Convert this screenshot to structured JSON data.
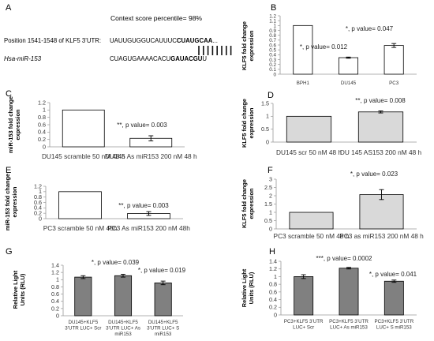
{
  "panel_a": {
    "label": "A",
    "context_text": "Context score percentile= 98%",
    "position_text": "Position 1541-1548 of KLF5 3’UTR:",
    "utr_seq_pre": "UAUUGUGGUCAUUUC",
    "utr_seq_seed": "CUAUGCAA",
    "utr_seq_post": "...",
    "mirna_name": "Hsa-miR-153",
    "mirna_seq_pre": "CUAGUGAAAACACU",
    "mirna_seq_seed": "GAUACGU",
    "mirna_seq_post": "U"
  },
  "chart_data": [
    {
      "id": "B",
      "panel_label": "B",
      "type": "bar",
      "ylabel": "KLF5 fold change expression",
      "ylim": [
        0,
        1.2
      ],
      "yticks": [
        "0",
        "0.1",
        "0.2",
        "0.3",
        "0.4",
        "0.5",
        "0.6",
        "0.7",
        "0.8",
        "0.9",
        "1",
        "1.1",
        "1.2"
      ],
      "categories": [
        "BPH1",
        "DU145",
        "PC3"
      ],
      "values": [
        1.0,
        0.34,
        0.59
      ],
      "errors": [
        0,
        0.012,
        0.04
      ],
      "fill": "#ffffff",
      "annotations": [
        "",
        "*, p value= 0.012",
        "*, p value= 0.047"
      ]
    },
    {
      "id": "C",
      "panel_label": "C",
      "type": "bar",
      "ylabel": "miR-153 fold change expression",
      "ylim": [
        0,
        1.2
      ],
      "yticks": [
        "0",
        "0.2",
        "0.4",
        "0.6",
        "0.8",
        "1",
        "1.2"
      ],
      "categories": [
        "DU145 scramble 50 nM 48 h",
        "DU145 As miR153 200 nM 48 h"
      ],
      "values": [
        1.0,
        0.23
      ],
      "errors": [
        0,
        0.07
      ],
      "fill": "#ffffff",
      "annotations": [
        "",
        "**, p value= 0.003"
      ]
    },
    {
      "id": "D",
      "panel_label": "D",
      "type": "bar",
      "ylabel": "KLF5 fold change expression",
      "ylim": [
        0,
        1.5
      ],
      "yticks": [
        "0",
        "0.5",
        "1",
        "1.5"
      ],
      "categories": [
        "DU145 scr 50 nM 48 h",
        "DU 145 AS153 200 nM 48 h"
      ],
      "values": [
        1.0,
        1.17
      ],
      "errors": [
        0,
        0.04
      ],
      "fill": "#d9d9d9",
      "annotations": [
        "",
        "**, p value= 0.008"
      ]
    },
    {
      "id": "E",
      "panel_label": "E",
      "type": "bar",
      "ylabel": "miR-153 fold change expression",
      "ylim": [
        0,
        1.2
      ],
      "yticks": [
        "0",
        "0.2",
        "0.4",
        "0.6",
        "0.8",
        "1",
        "1.2"
      ],
      "categories": [
        "PC3 scramble 50 nM 48h",
        "PC3 As miR153 200 nM 48h"
      ],
      "values": [
        1.0,
        0.19
      ],
      "errors": [
        0,
        0.07
      ],
      "fill": "#ffffff",
      "annotations": [
        "",
        "**, p value= 0.003"
      ]
    },
    {
      "id": "F",
      "panel_label": "F",
      "type": "bar",
      "ylabel": "KLF5 fold change expression",
      "ylim": [
        0,
        3
      ],
      "yticks": [
        "0",
        "0.5",
        "1",
        "1.5",
        "2",
        "2.5",
        "3"
      ],
      "categories": [
        "PC3 scramble 50 nM 48 h",
        "PC3 as miR153 200 nM 48 h"
      ],
      "values": [
        1.0,
        2.07
      ],
      "errors": [
        0,
        0.3
      ],
      "fill": "#d9d9d9",
      "annotations": [
        "",
        "*, p value= 0.023"
      ]
    },
    {
      "id": "G",
      "panel_label": "G",
      "type": "bar",
      "ylabel": "Relative Light Units (RLU)",
      "ylim": [
        0,
        1.4
      ],
      "yticks": [
        "0",
        "0.2",
        "0.4",
        "0.6",
        "0.8",
        "1",
        "1.2",
        "1.4"
      ],
      "categories": [
        "DU145+KLF5 3’UTR LUC+ Scr",
        "DU145+KLF5 3’UTR LUC+ As miR153",
        "DU145+KLF5 3’UTR LUC+ S miR153"
      ],
      "values": [
        1.07,
        1.11,
        0.91
      ],
      "errors": [
        0.04,
        0.04,
        0.05
      ],
      "fill": "#808080",
      "annotations": [
        "",
        "*, p value= 0.039",
        "*, p value= 0.019"
      ]
    },
    {
      "id": "H",
      "panel_label": "H",
      "type": "bar",
      "ylabel": "Relative Light Units (RLU)",
      "ylim": [
        0,
        1.4
      ],
      "yticks": [
        "0",
        "0.2",
        "0.4",
        "0.6",
        "0.8",
        "1",
        "1.2",
        "1.4"
      ],
      "categories": [
        "PC3+KLF5 3’UTR LUC+ Scr",
        "PC3+KLF5 3’UTR LUC+ As miR153",
        "PC3+KLF5 3’UTR LUC+ S miR153"
      ],
      "values": [
        1.0,
        1.22,
        0.88
      ],
      "errors": [
        0.05,
        0.02,
        0.03
      ],
      "fill": "#808080",
      "annotations": [
        "",
        "***, p value= 0.0002",
        "*, p value= 0.041"
      ]
    }
  ]
}
